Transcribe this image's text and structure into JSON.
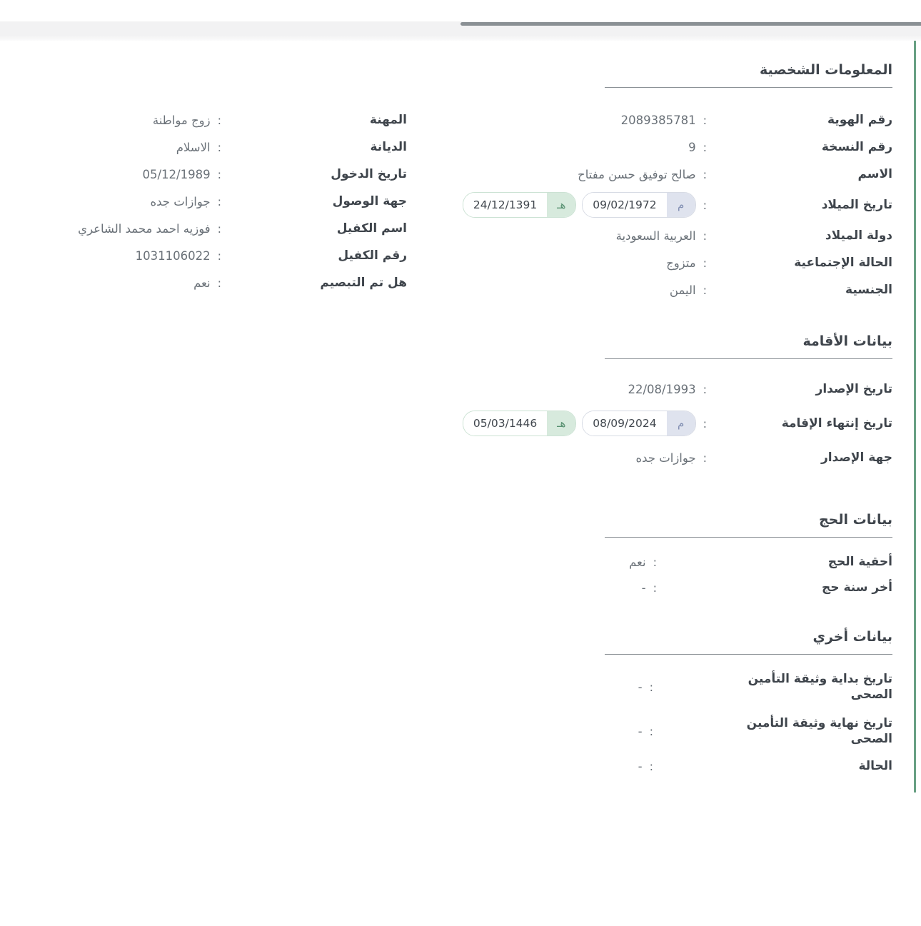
{
  "colors": {
    "accent_green": "#68a083",
    "scroll_thumb": "#8a9094",
    "top_strip": "#f2f2f3",
    "label_text": "#3f454c",
    "value_text": "#6a7178",
    "divider": "#8b9196",
    "pill_gregorian_bg": "#dfe3ee",
    "pill_gregorian_text": "#7f8db1",
    "pill_hijri_bg": "#d7eadd",
    "pill_hijri_text": "#579070"
  },
  "colon": ":",
  "calendar_letters": {
    "gregorian": "م",
    "hijri": "هـ"
  },
  "sections": {
    "personal": {
      "title": "المعلومات الشخصية",
      "col_right": [
        {
          "label": "رقم الهوية",
          "value": "2089385781"
        },
        {
          "label": "رقم النسخة",
          "value": "9"
        },
        {
          "label": "الاسم",
          "value": "صالح توفيق حسن مفتاح"
        },
        {
          "label": "تاريخ الميلاد",
          "gregorian": "09/02/1972",
          "hijri": "24/12/1391"
        },
        {
          "label": "دولة الميلاد",
          "value": "العربية السعودية"
        },
        {
          "label": "الحالة الإجتماعية",
          "value": "متزوج"
        },
        {
          "label": "الجنسية",
          "value": "اليمن"
        }
      ],
      "col_left": [
        {
          "label": "المهنة",
          "value": "زوج مواطنة"
        },
        {
          "label": "الديانة",
          "value": "الاسلام"
        },
        {
          "label": "تاريخ الدخول",
          "value": "05/12/1989"
        },
        {
          "label": "جهة الوصول",
          "value": "جوازات جده"
        },
        {
          "label": "اسم الكفيل",
          "value": "فوزيه احمد محمد الشاعري"
        },
        {
          "label": "رقم الكفيل",
          "value": "1031106022"
        },
        {
          "label": "هل تم التبصيم",
          "value": "نعم"
        }
      ]
    },
    "residence": {
      "title": "بيانات الأقامة",
      "fields": [
        {
          "label": "تاريخ الإصدار",
          "value": "22/08/1993"
        },
        {
          "label": "تاريخ إنتهاء الإقامة",
          "gregorian": "08/09/2024",
          "hijri": "05/03/1446"
        },
        {
          "label": "جهة الإصدار",
          "value": "جوازات جده"
        }
      ]
    },
    "hajj": {
      "title": "بيانات الحج",
      "fields": [
        {
          "label": "أحقية الحج",
          "value": "نعم"
        },
        {
          "label": "أخر سنة حج",
          "value": "-"
        }
      ]
    },
    "other": {
      "title": "بيانات أخري",
      "fields": [
        {
          "label": "تاريخ بداية وثيقة التأمين الصحى",
          "value": "-"
        },
        {
          "label": "تاريخ نهاية وثيقة التأمين الصحى",
          "value": "-"
        },
        {
          "label": "الحالة",
          "value": "-"
        }
      ]
    }
  }
}
